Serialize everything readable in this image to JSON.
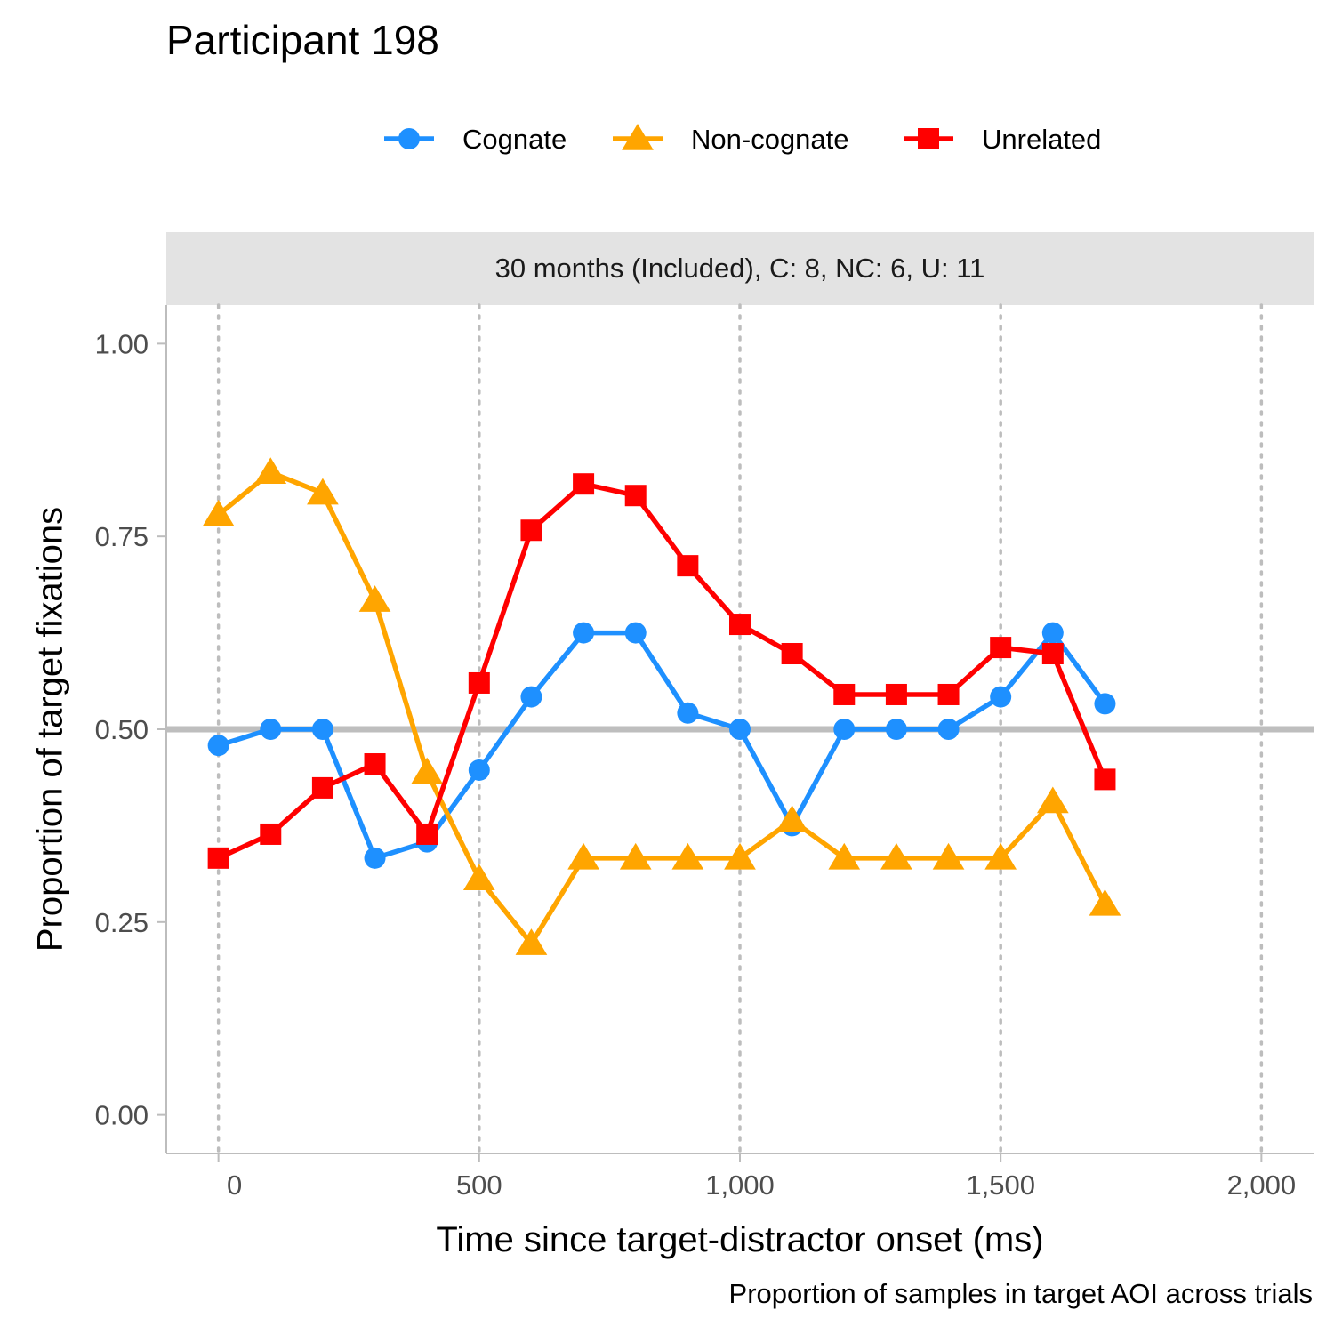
{
  "title": "Participant 198",
  "caption": "Proportion of samples in target AOI across trials",
  "chart_data": {
    "type": "line",
    "title": "Participant 198",
    "facet_label": "30 months (Included), C: 8, NC: 6, U: 11",
    "xlabel": "Time since target-distractor onset (ms)",
    "ylabel": "Proportion of target fixations",
    "xlim": [
      -100,
      2100
    ],
    "ylim": [
      -0.05,
      1.05
    ],
    "x_ticks": [
      0,
      500,
      1000,
      1500,
      2000
    ],
    "x_tick_labels": [
      "0",
      "500",
      "1,000",
      "1,500",
      "2,000"
    ],
    "y_ticks": [
      0,
      0.25,
      0.5,
      0.75,
      1.0
    ],
    "y_tick_labels": [
      "0.00",
      "0.25",
      "0.50",
      "0.75",
      "1.00"
    ],
    "reference_line_y": 0.5,
    "legend_position": "top",
    "grid": "dotted vertical lines at x ticks",
    "x": [
      0,
      100,
      200,
      300,
      400,
      500,
      600,
      700,
      800,
      900,
      1000,
      1100,
      1200,
      1300,
      1400,
      1500,
      1600,
      1700
    ],
    "series": [
      {
        "name": "Cognate",
        "color": "#1e90ff",
        "marker": "circle",
        "values": [
          0.479,
          0.5,
          0.5,
          0.333,
          0.354,
          0.447,
          0.542,
          0.625,
          0.625,
          0.521,
          0.5,
          0.375,
          0.5,
          0.5,
          0.5,
          0.542,
          0.625,
          0.533
        ]
      },
      {
        "name": "Non-cognate",
        "color": "#ffa500",
        "marker": "triangle",
        "values": [
          0.778,
          0.833,
          0.806,
          0.667,
          0.444,
          0.306,
          0.222,
          0.333,
          0.333,
          0.333,
          0.333,
          0.382,
          0.333,
          0.333,
          0.333,
          0.333,
          0.406,
          0.273
        ]
      },
      {
        "name": "Unrelated",
        "color": "#ff0000",
        "marker": "square",
        "values": [
          0.333,
          0.364,
          0.424,
          0.455,
          0.364,
          0.56,
          0.758,
          0.818,
          0.803,
          0.712,
          0.636,
          0.598,
          0.545,
          0.545,
          0.545,
          0.606,
          0.598,
          0.435
        ]
      }
    ]
  }
}
